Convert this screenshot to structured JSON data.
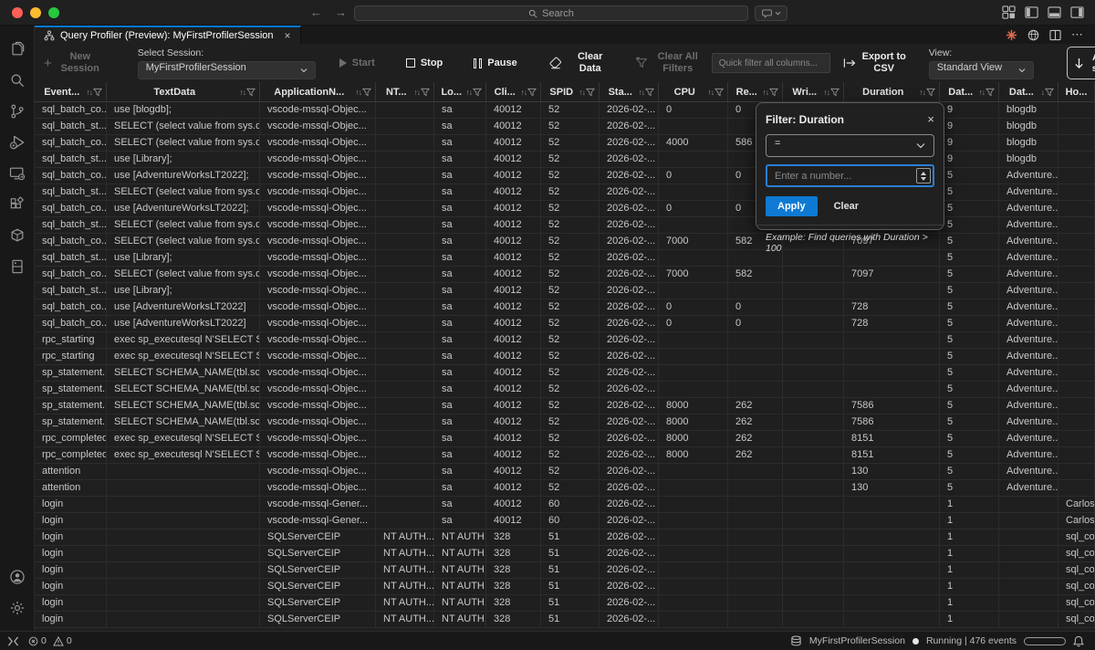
{
  "window": {
    "search_placeholder": "Search",
    "traffic_lights": {
      "close": "#ff5f57",
      "minimize": "#febc2e",
      "zoom": "#28c840"
    }
  },
  "tab": {
    "title": "Query Profiler (Preview): MyFirstProfilerSession",
    "close_glyph": "×"
  },
  "toolbar": {
    "new_session": "New Session",
    "select_session_label": "Select Session:",
    "select_session_value": "MyFirstProfilerSession",
    "start": "Start",
    "stop": "Stop",
    "pause": "Pause",
    "clear_data": "Clear Data",
    "clear_all_filters": "Clear All Filters",
    "quick_filter_placeholder": "Quick filter all columns...",
    "export_csv": "Export to CSV",
    "view_label": "View:",
    "view_value": "Standard View",
    "autoscroll": "Auto-scroll"
  },
  "filter_popup": {
    "title": "Filter: Duration",
    "close_glyph": "×",
    "operator": "=",
    "input_placeholder": "Enter a number...",
    "apply_label": "Apply",
    "clear_label": "Clear",
    "example": "Example: Find queries with Duration > 100"
  },
  "status_bar": {
    "errors": "0",
    "warnings": "0",
    "session": "MyFirstProfilerSession",
    "state": "Running | 476 events"
  },
  "activity_bar": {
    "items": [
      "files",
      "search",
      "source-control",
      "run-debug",
      "remote-explorer",
      "extensions",
      "containers",
      "database",
      "account",
      "settings"
    ]
  },
  "grid": {
    "columns": [
      {
        "label": "Event...",
        "sort": "both"
      },
      {
        "label": "TextData",
        "sort": "both"
      },
      {
        "label": "ApplicationN...",
        "sort": "both"
      },
      {
        "label": "NT...",
        "sort": "both"
      },
      {
        "label": "Lo...",
        "sort": "both"
      },
      {
        "label": "Cli...",
        "sort": "both"
      },
      {
        "label": "SPID",
        "sort": "both"
      },
      {
        "label": "Sta...",
        "sort": "both"
      },
      {
        "label": "CPU",
        "sort": "both"
      },
      {
        "label": "Re...",
        "sort": "both"
      },
      {
        "label": "Wri...",
        "sort": "both"
      },
      {
        "label": "Duration",
        "sort": "both"
      },
      {
        "label": "Dat...",
        "sort": "both"
      },
      {
        "label": "Dat...",
        "sort": "desc"
      },
      {
        "label": "Ho...",
        "sort": "none"
      }
    ],
    "rows": [
      [
        "sql_batch_co...",
        "use [blogdb];",
        "vscode-mssql-Objec...",
        "",
        "sa",
        "40012",
        "52",
        "2026-02-...",
        "0",
        "0",
        "",
        "",
        "9",
        "blogdb",
        ""
      ],
      [
        "sql_batch_st...",
        "SELECT (select value from sys.d...",
        "vscode-mssql-Objec...",
        "",
        "sa",
        "40012",
        "52",
        "2026-02-...",
        "",
        "",
        "",
        "",
        "9",
        "blogdb",
        ""
      ],
      [
        "sql_batch_co...",
        "SELECT (select value from sys.d...",
        "vscode-mssql-Objec...",
        "",
        "sa",
        "40012",
        "52",
        "2026-02-...",
        "4000",
        "586",
        "",
        "",
        "9",
        "blogdb",
        ""
      ],
      [
        "sql_batch_st...",
        "use [Library];",
        "vscode-mssql-Objec...",
        "",
        "sa",
        "40012",
        "52",
        "2026-02-...",
        "",
        "",
        "",
        "",
        "9",
        "blogdb",
        ""
      ],
      [
        "sql_batch_co...",
        "use [AdventureWorksLT2022];",
        "vscode-mssql-Objec...",
        "",
        "sa",
        "40012",
        "52",
        "2026-02-...",
        "0",
        "0",
        "",
        "",
        "5",
        "Adventure...",
        ""
      ],
      [
        "sql_batch_st...",
        "SELECT (select value from sys.d...",
        "vscode-mssql-Objec...",
        "",
        "sa",
        "40012",
        "52",
        "2026-02-...",
        "",
        "",
        "",
        "",
        "5",
        "Adventure...",
        ""
      ],
      [
        "sql_batch_co...",
        "use [AdventureWorksLT2022];",
        "vscode-mssql-Objec...",
        "",
        "sa",
        "40012",
        "52",
        "2026-02-...",
        "0",
        "0",
        "",
        "",
        "5",
        "Adventure...",
        ""
      ],
      [
        "sql_batch_st...",
        "SELECT (select value from sys.d...",
        "vscode-mssql-Objec...",
        "",
        "sa",
        "40012",
        "52",
        "2026-02-...",
        "",
        "",
        "",
        "",
        "5",
        "Adventure...",
        ""
      ],
      [
        "sql_batch_co...",
        "SELECT (select value from sys.d...",
        "vscode-mssql-Objec...",
        "",
        "sa",
        "40012",
        "52",
        "2026-02-...",
        "7000",
        "582",
        "",
        "7097",
        "5",
        "Adventure...",
        ""
      ],
      [
        "sql_batch_st...",
        "use [Library];",
        "vscode-mssql-Objec...",
        "",
        "sa",
        "40012",
        "52",
        "2026-02-...",
        "",
        "",
        "",
        "",
        "5",
        "Adventure...",
        ""
      ],
      [
        "sql_batch_co...",
        "SELECT (select value from sys.d...",
        "vscode-mssql-Objec...",
        "",
        "sa",
        "40012",
        "52",
        "2026-02-...",
        "7000",
        "582",
        "",
        "7097",
        "5",
        "Adventure...",
        ""
      ],
      [
        "sql_batch_st...",
        "use [Library];",
        "vscode-mssql-Objec...",
        "",
        "sa",
        "40012",
        "52",
        "2026-02-...",
        "",
        "",
        "",
        "",
        "5",
        "Adventure...",
        ""
      ],
      [
        "sql_batch_co...",
        "use [AdventureWorksLT2022]",
        "vscode-mssql-Objec...",
        "",
        "sa",
        "40012",
        "52",
        "2026-02-...",
        "0",
        "0",
        "",
        "728",
        "5",
        "Adventure...",
        ""
      ],
      [
        "sql_batch_co...",
        "use [AdventureWorksLT2022]",
        "vscode-mssql-Objec...",
        "",
        "sa",
        "40012",
        "52",
        "2026-02-...",
        "0",
        "0",
        "",
        "728",
        "5",
        "Adventure...",
        ""
      ],
      [
        "rpc_starting",
        "exec sp_executesql N'SELECT S...",
        "vscode-mssql-Objec...",
        "",
        "sa",
        "40012",
        "52",
        "2026-02-...",
        "",
        "",
        "",
        "",
        "5",
        "Adventure...",
        ""
      ],
      [
        "rpc_starting",
        "exec sp_executesql N'SELECT S...",
        "vscode-mssql-Objec...",
        "",
        "sa",
        "40012",
        "52",
        "2026-02-...",
        "",
        "",
        "",
        "",
        "5",
        "Adventure...",
        ""
      ],
      [
        "sp_statement...",
        "SELECT SCHEMA_NAME(tbl.sch...",
        "vscode-mssql-Objec...",
        "",
        "sa",
        "40012",
        "52",
        "2026-02-...",
        "",
        "",
        "",
        "",
        "5",
        "Adventure...",
        ""
      ],
      [
        "sp_statement...",
        "SELECT SCHEMA_NAME(tbl.sch...",
        "vscode-mssql-Objec...",
        "",
        "sa",
        "40012",
        "52",
        "2026-02-...",
        "",
        "",
        "",
        "",
        "5",
        "Adventure...",
        ""
      ],
      [
        "sp_statement...",
        "SELECT SCHEMA_NAME(tbl.sch...",
        "vscode-mssql-Objec...",
        "",
        "sa",
        "40012",
        "52",
        "2026-02-...",
        "8000",
        "262",
        "",
        "7586",
        "5",
        "Adventure...",
        ""
      ],
      [
        "sp_statement...",
        "SELECT SCHEMA_NAME(tbl.sch...",
        "vscode-mssql-Objec...",
        "",
        "sa",
        "40012",
        "52",
        "2026-02-...",
        "8000",
        "262",
        "",
        "7586",
        "5",
        "Adventure...",
        ""
      ],
      [
        "rpc_completed",
        "exec sp_executesql N'SELECT S...",
        "vscode-mssql-Objec...",
        "",
        "sa",
        "40012",
        "52",
        "2026-02-...",
        "8000",
        "262",
        "",
        "8151",
        "5",
        "Adventure...",
        ""
      ],
      [
        "rpc_completed",
        "exec sp_executesql N'SELECT S...",
        "vscode-mssql-Objec...",
        "",
        "sa",
        "40012",
        "52",
        "2026-02-...",
        "8000",
        "262",
        "",
        "8151",
        "5",
        "Adventure...",
        ""
      ],
      [
        "attention",
        "",
        "vscode-mssql-Objec...",
        "",
        "sa",
        "40012",
        "52",
        "2026-02-...",
        "",
        "",
        "",
        "130",
        "5",
        "Adventure...",
        ""
      ],
      [
        "attention",
        "",
        "vscode-mssql-Objec...",
        "",
        "sa",
        "40012",
        "52",
        "2026-02-...",
        "",
        "",
        "",
        "130",
        "5",
        "Adventure...",
        ""
      ],
      [
        "login",
        "",
        "vscode-mssql-Gener...",
        "",
        "sa",
        "40012",
        "60",
        "2026-02-...",
        "",
        "",
        "",
        "",
        "1",
        "",
        "Carlos"
      ],
      [
        "login",
        "",
        "vscode-mssql-Gener...",
        "",
        "sa",
        "40012",
        "60",
        "2026-02-...",
        "",
        "",
        "",
        "",
        "1",
        "",
        "Carlos"
      ],
      [
        "login",
        "",
        "SQLServerCEIP",
        "NT AUTH...",
        "NT AUTH...",
        "328",
        "51",
        "2026-02-...",
        "",
        "",
        "",
        "",
        "1",
        "",
        "sql_co..."
      ],
      [
        "login",
        "",
        "SQLServerCEIP",
        "NT AUTH...",
        "NT AUTH...",
        "328",
        "51",
        "2026-02-...",
        "",
        "",
        "",
        "",
        "1",
        "",
        "sql_co..."
      ],
      [
        "login",
        "",
        "SQLServerCEIP",
        "NT AUTH...",
        "NT AUTH...",
        "328",
        "51",
        "2026-02-...",
        "",
        "",
        "",
        "",
        "1",
        "",
        "sql_co..."
      ],
      [
        "login",
        "",
        "SQLServerCEIP",
        "NT AUTH...",
        "NT AUTH...",
        "328",
        "51",
        "2026-02-...",
        "",
        "",
        "",
        "",
        "1",
        "",
        "sql_co..."
      ],
      [
        "login",
        "",
        "SQLServerCEIP",
        "NT AUTH...",
        "NT AUTH...",
        "328",
        "51",
        "2026-02-...",
        "",
        "",
        "",
        "",
        "1",
        "",
        "sql_co..."
      ],
      [
        "login",
        "",
        "SQLServerCEIP",
        "NT AUTH...",
        "NT AUTH...",
        "328",
        "51",
        "2026-02-...",
        "",
        "",
        "",
        "",
        "1",
        "",
        "sql_co..."
      ]
    ]
  }
}
